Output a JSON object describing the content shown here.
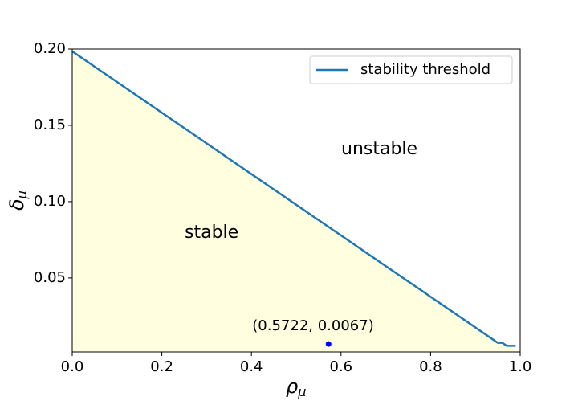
{
  "chart_data": {
    "type": "line",
    "x": [
      0,
      0.94,
      0.95,
      0.96,
      0.97,
      0.99
    ],
    "series": [
      {
        "name": "stability threshold",
        "color": "#1f77b4",
        "values": [
          0.1985,
          0.0095,
          0.0075,
          0.0075,
          0.0055,
          0.0055
        ]
      }
    ],
    "fill_below": "#ffffe0",
    "point": {
      "x": 0.5722,
      "y": 0.0067,
      "color": "#0000ff",
      "label": "(0.5722, 0.0067)"
    },
    "region_labels": [
      "stable",
      "unstable"
    ],
    "xlabel": "ρ",
    "xlabel_subscript": "μ",
    "ylabel": "δ",
    "ylabel_subscript": "μ",
    "xlim": [
      0,
      1
    ],
    "ylim": [
      0.0015,
      0.2
    ],
    "xticks": [
      {
        "value": 0,
        "label": "0.0"
      },
      {
        "value": 0.2,
        "label": "0.2"
      },
      {
        "value": 0.4,
        "label": "0.4"
      },
      {
        "value": 0.6,
        "label": "0.6"
      },
      {
        "value": 0.8,
        "label": "0.8"
      },
      {
        "value": 1,
        "label": "1.0"
      }
    ],
    "yticks": [
      {
        "value": 0.05,
        "label": "0.05"
      },
      {
        "value": 0.1,
        "label": "0.10"
      },
      {
        "value": 0.15,
        "label": "0.15"
      },
      {
        "value": 0.2,
        "label": "0.20"
      }
    ],
    "legend": "upper right"
  }
}
